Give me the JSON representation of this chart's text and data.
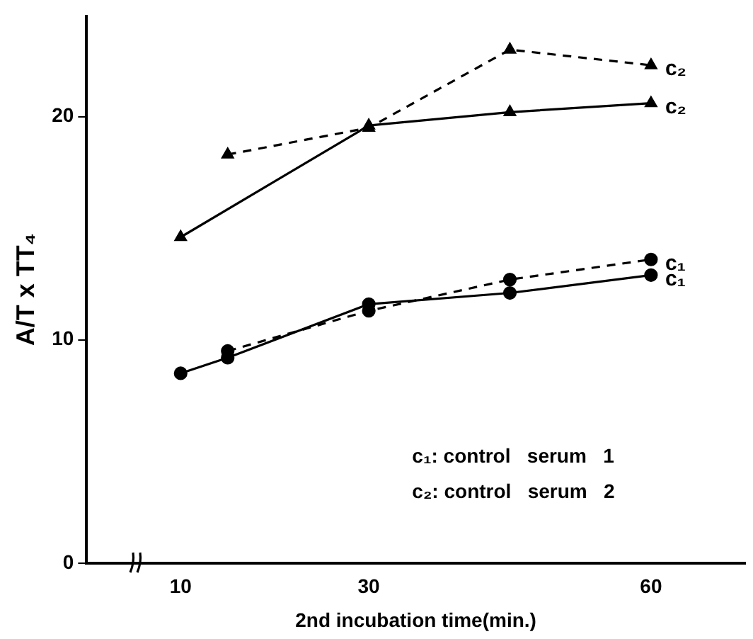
{
  "chart_data": {
    "type": "line",
    "xlabel": "2nd incubation time(min.)",
    "ylabel": "A/T x TT₄",
    "xlim": [
      0,
      70
    ],
    "xticks": [
      10,
      30,
      60
    ],
    "ylim": [
      0,
      24.5
    ],
    "yticks": [
      0,
      10,
      20
    ],
    "grid": false,
    "legend": false,
    "series": [
      {
        "name": "c₂",
        "color": "#000000",
        "line_style": "dashed",
        "marker": "triangle",
        "x": [
          15,
          30,
          45,
          60
        ],
        "values": [
          18.3,
          19.5,
          23.0,
          22.3
        ]
      },
      {
        "name": "c₂",
        "color": "#000000",
        "line_style": "solid",
        "marker": "triangle",
        "x": [
          10,
          30,
          45,
          60
        ],
        "values": [
          14.6,
          19.6,
          20.2,
          20.6
        ]
      },
      {
        "name": "c₁",
        "color": "#000000",
        "line_style": "dashed",
        "marker": "circle",
        "x": [
          15,
          30,
          45,
          60
        ],
        "values": [
          9.5,
          11.3,
          12.7,
          13.6
        ]
      },
      {
        "name": "c₁",
        "color": "#000000",
        "line_style": "solid",
        "marker": "circle",
        "x": [
          10,
          15,
          30,
          45,
          60
        ],
        "values": [
          8.5,
          9.2,
          11.6,
          12.1,
          12.9
        ]
      }
    ],
    "annotations": [
      "c₁: control   serum   1",
      "c₂: control   serum   2"
    ]
  }
}
